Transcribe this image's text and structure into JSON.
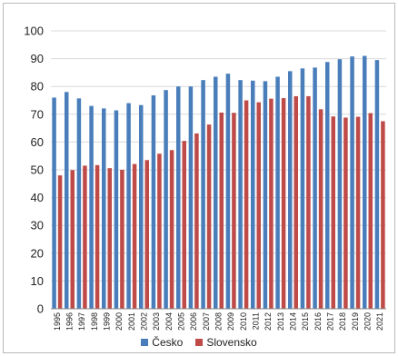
{
  "chart_data": {
    "type": "bar",
    "title": "",
    "xlabel": "",
    "ylabel": "",
    "ylim": [
      0,
      100
    ],
    "yticks": [
      0,
      10,
      20,
      30,
      40,
      50,
      60,
      70,
      80,
      90,
      100
    ],
    "grid": "horizontal",
    "legend_position": "bottom",
    "categories": [
      "1995",
      "1996",
      "1997",
      "1998",
      "1999",
      "2000",
      "2001",
      "2002",
      "2003",
      "2004",
      "2005",
      "2006",
      "2007",
      "2008",
      "2009",
      "2010",
      "2011",
      "2012",
      "2013",
      "2014",
      "2015",
      "2016",
      "2017",
      "2018",
      "2019",
      "2020",
      "2021"
    ],
    "series": [
      {
        "name": "Česko",
        "color": "#4a7ebb",
        "values": [
          76.0,
          78.0,
          75.7,
          73.0,
          72.1,
          71.4,
          74.0,
          73.3,
          76.8,
          78.7,
          80.0,
          80.0,
          82.3,
          83.5,
          84.6,
          82.3,
          82.1,
          81.9,
          83.5,
          85.5,
          86.5,
          86.8,
          88.8,
          89.8,
          90.8,
          91.0,
          89.5
        ]
      },
      {
        "name": "Slovensko",
        "color": "#be4b48",
        "values": [
          48.0,
          49.9,
          51.5,
          51.7,
          50.6,
          50.0,
          52.1,
          53.5,
          55.8,
          57.1,
          60.4,
          63.1,
          66.3,
          70.6,
          70.5,
          75.0,
          74.3,
          75.6,
          75.8,
          76.5,
          76.5,
          71.8,
          69.2,
          68.8,
          69.1,
          70.4,
          67.5
        ]
      }
    ]
  }
}
